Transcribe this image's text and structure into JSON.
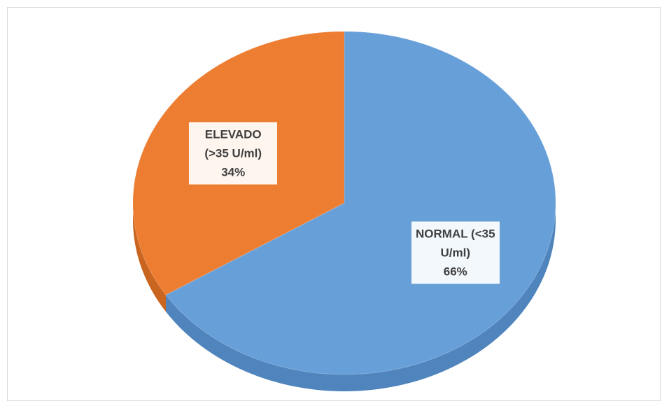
{
  "chart_data": {
    "type": "pie",
    "categories": [
      "NORMAL (<35 U/ml)",
      "ELEVADO  (>35 U/ml)"
    ],
    "values": [
      66,
      34
    ],
    "value_labels": [
      "66%",
      "34%"
    ],
    "colors": [
      "#679fd8",
      "#ed7d31"
    ],
    "side_colors": [
      "#4f84bd",
      "#c9651f"
    ],
    "three_d": true
  }
}
